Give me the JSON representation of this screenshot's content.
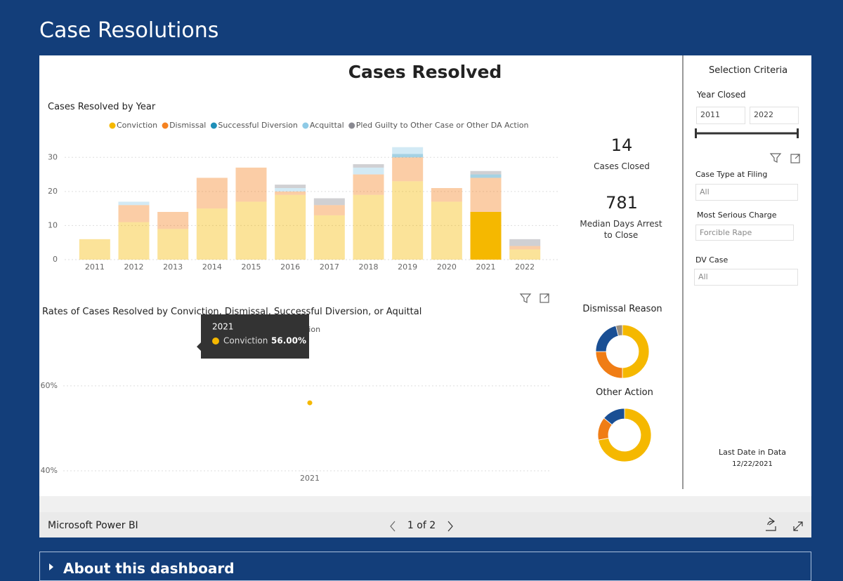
{
  "header": {
    "title": "Case Resolutions"
  },
  "report": {
    "title": "Cases Resolved"
  },
  "chart_data": [
    {
      "type": "bar",
      "stacked": true,
      "title": "Cases Resolved by Year",
      "categories": [
        "2011",
        "2012",
        "2013",
        "2014",
        "2015",
        "2016",
        "2017",
        "2018",
        "2019",
        "2020",
        "2021",
        "2022"
      ],
      "series": [
        {
          "name": "Conviction",
          "color": "#f5b800",
          "values": [
            6,
            11,
            9,
            15,
            17,
            19,
            13,
            19,
            23,
            17,
            14,
            3
          ]
        },
        {
          "name": "Dismissal",
          "color": "#f58221",
          "values": [
            0,
            5,
            5,
            9,
            10,
            1,
            3,
            6,
            7,
            4,
            10,
            1
          ]
        },
        {
          "name": "Successful Diversion",
          "color": "#1f8fb8",
          "values": [
            0,
            0,
            0,
            0,
            0,
            0,
            0,
            0,
            1,
            0,
            1,
            0
          ]
        },
        {
          "name": "Acquittal",
          "color": "#8ecae6",
          "values": [
            0,
            1,
            0,
            0,
            0,
            1,
            0,
            2,
            2,
            0,
            0,
            0
          ]
        },
        {
          "name": "Pled Guilty to Other Case or Other DA Action",
          "color": "#8a8a92",
          "values": [
            0,
            0,
            0,
            0,
            0,
            1,
            2,
            1,
            0,
            0,
            1,
            2
          ]
        }
      ],
      "ylim": [
        0,
        35
      ],
      "yticks": [
        0,
        10,
        20,
        30
      ],
      "grid": true,
      "legend": "top"
    },
    {
      "type": "line",
      "title": "Rates of Cases Resolved by Conviction, Dismissal, Successful Diversion, or Aquittal",
      "categories": [
        "2021"
      ],
      "series": [
        {
          "name": "Conviction",
          "color": "#f5b800",
          "values": [
            56
          ],
          "value_labels": [
            "56.00%"
          ]
        }
      ],
      "ylim": [
        40,
        75
      ],
      "yticks": [
        {
          "value": 40,
          "label": "40%"
        },
        {
          "value": 60,
          "label": "60%"
        }
      ],
      "grid": true
    },
    {
      "type": "donut",
      "title": "Dismissal Reason",
      "categories": [
        null,
        null,
        null,
        null
      ],
      "values": [
        50,
        25,
        21,
        4
      ],
      "colors": [
        "#f5b800",
        "#f07d15",
        "#1a4f94",
        "#9c8f7e"
      ]
    },
    {
      "type": "donut",
      "title": "Other Action",
      "categories": [
        null,
        null,
        null
      ],
      "values": [
        72,
        14,
        14
      ],
      "colors": [
        "#f5b800",
        "#f07d15",
        "#1a4f94"
      ]
    }
  ],
  "kpis": [
    {
      "value": "14",
      "label": "Cases Closed"
    },
    {
      "value": "781",
      "label": "Median Days Arrest to Close"
    }
  ],
  "slicers": {
    "title": "Selection Criteria",
    "year": {
      "label": "Year Closed",
      "from": "2011",
      "to": "2022"
    },
    "case_type": {
      "label": "Case Type at Filing",
      "value": "All"
    },
    "charge": {
      "label": "Most Serious Charge",
      "value": "Forcible Rape"
    },
    "dv": {
      "label": "DV Case",
      "value": "All"
    },
    "last_date": {
      "label": "Last Date in Data",
      "value": "12/22/2021"
    }
  },
  "footer": {
    "brand": "Microsoft Power BI",
    "page": "1 of 2"
  },
  "expander": {
    "label": "About this dashboard"
  }
}
